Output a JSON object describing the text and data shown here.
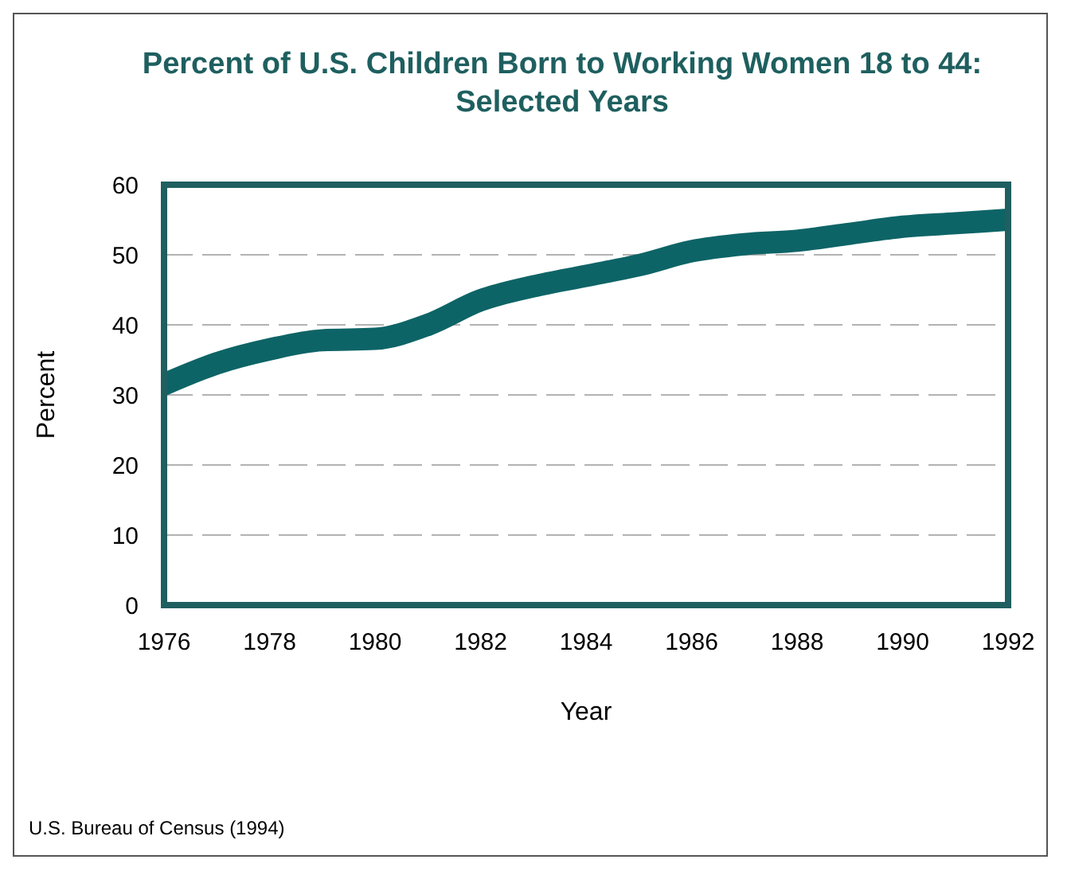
{
  "chart_data": {
    "type": "line",
    "title": "Percent of U.S. Children Born to Working Women 18 to 44:\nSelected Years",
    "xlabel": "Year",
    "ylabel": "Percent",
    "x": [
      1976,
      1977,
      1978,
      1979,
      1980,
      1981,
      1982,
      1983,
      1984,
      1985,
      1986,
      1987,
      1988,
      1989,
      1990,
      1991,
      1992
    ],
    "series": [
      {
        "color": "#0d6466",
        "values": [
          31.5,
          34.5,
          36.5,
          37.8,
          38,
          40,
          43.5,
          45.5,
          47,
          48.5,
          50.5,
          51.5,
          52,
          53,
          54,
          54.5,
          55
        ]
      }
    ],
    "xlim": [
      1976,
      1992
    ],
    "xticks": [
      1976,
      1978,
      1980,
      1982,
      1984,
      1986,
      1988,
      1990,
      1992
    ],
    "ylim": [
      0,
      60
    ],
    "yticks": [
      0,
      10,
      20,
      30,
      40,
      50,
      60
    ],
    "grid": "y",
    "line_style": "solid",
    "annotations": [
      "U.S. Bureau of Census (1994)"
    ]
  }
}
